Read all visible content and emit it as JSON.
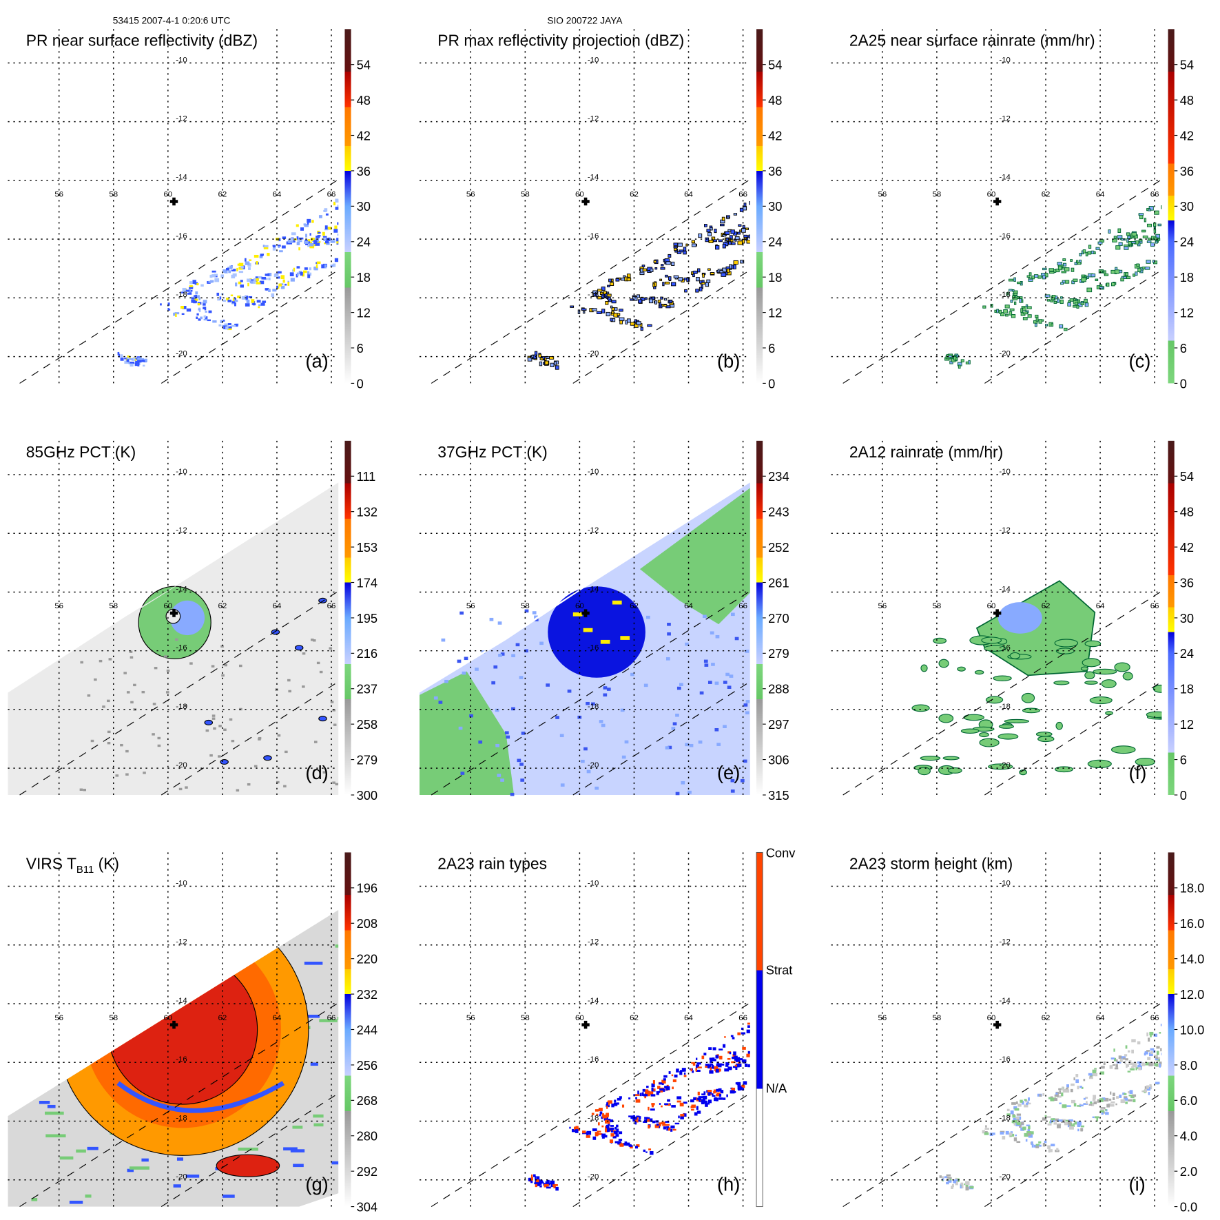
{
  "header": {
    "orbit_time": "53415 2007-4-1 0:20:6 UTC",
    "storm": "SIO 200722 JAYA"
  },
  "map": {
    "lon_labels": [
      "56",
      "58",
      "60",
      "62",
      "64",
      "66"
    ],
    "lat_labels": [
      "-10",
      "-12",
      "-14",
      "-16",
      "-18",
      "-20"
    ]
  },
  "panels": [
    {
      "id": "a",
      "title": "PR near surface reflectivity (dBZ)",
      "label": "(a)",
      "scheme": "refl",
      "ticks": [
        "0",
        "6",
        "12",
        "18",
        "24",
        "30",
        "36",
        "42",
        "48",
        "54"
      ]
    },
    {
      "id": "b",
      "title": "PR max reflectivity projection (dBZ)",
      "label": "(b)",
      "scheme": "refl",
      "ticks": [
        "0",
        "6",
        "12",
        "18",
        "24",
        "30",
        "36",
        "42",
        "48",
        "54"
      ]
    },
    {
      "id": "c",
      "title": "2A25 near surface rainrate (mm/hr)",
      "label": "(c)",
      "scheme": "rain",
      "ticks": [
        "0",
        "6",
        "12",
        "18",
        "24",
        "30",
        "36",
        "42",
        "48",
        "54"
      ]
    },
    {
      "id": "d",
      "title": "85GHz PCT (K)",
      "label": "(d)",
      "scheme": "refl",
      "ticks": [
        "300",
        "279",
        "258",
        "237",
        "216",
        "195",
        "174",
        "153",
        "132",
        "111"
      ]
    },
    {
      "id": "e",
      "title": "37GHz PCT (K)",
      "label": "(e)",
      "scheme": "refl",
      "ticks": [
        "315",
        "306",
        "297",
        "288",
        "279",
        "270",
        "261",
        "252",
        "243",
        "234"
      ]
    },
    {
      "id": "f",
      "title": "2A12 rainrate (mm/hr)",
      "label": "(f)",
      "scheme": "rain",
      "ticks": [
        "0",
        "6",
        "12",
        "18",
        "24",
        "30",
        "36",
        "42",
        "48",
        "54"
      ]
    },
    {
      "id": "g",
      "title": "VIRS T",
      "title_sub": "B11",
      "title_post": " (K)",
      "label": "(g)",
      "scheme": "refl",
      "ticks": [
        "304",
        "292",
        "280",
        "268",
        "256",
        "244",
        "232",
        "220",
        "208",
        "196"
      ]
    },
    {
      "id": "h",
      "title": "2A23 rain types",
      "label": "(h)",
      "scheme": "types",
      "ticks": [
        "N/A",
        "Strat",
        "Conv"
      ]
    },
    {
      "id": "i",
      "title": "2A23 storm height (km)",
      "label": "(i)",
      "scheme": "refl",
      "ticks": [
        "0.0",
        "2.0",
        "4.0",
        "6.0",
        "8.0",
        "10.0",
        "12.0",
        "14.0",
        "16.0",
        "18.0"
      ]
    }
  ],
  "colors": {
    "convective": "#ff4400",
    "stratiform": "#0000ee",
    "rain_green": "#77cc77",
    "rain_blue": "#3355ff"
  }
}
